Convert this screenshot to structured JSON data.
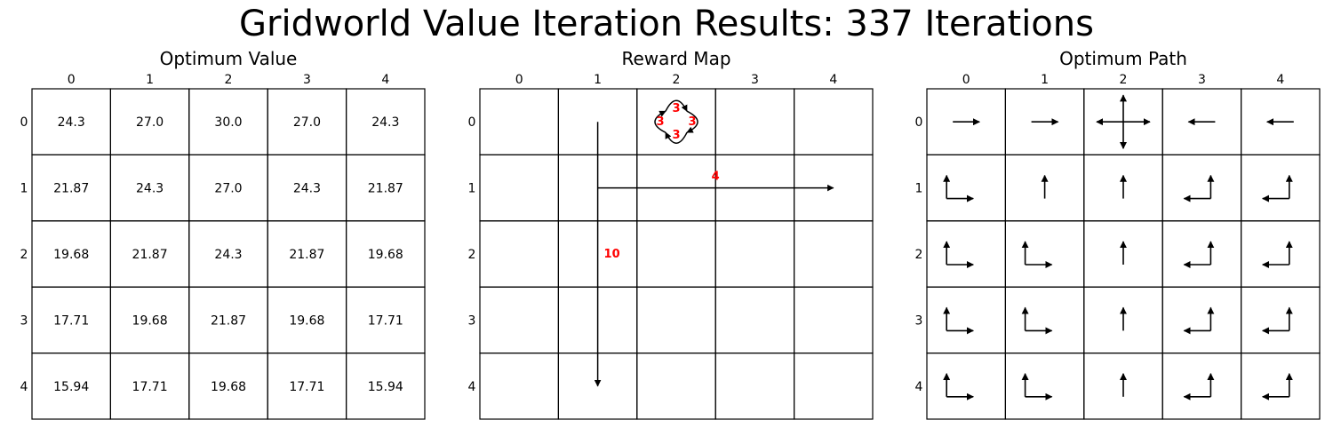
{
  "title": "Gridworld Value Iteration Results: 337 Iterations",
  "chart_data": [
    {
      "type": "table",
      "title": "Optimum Value",
      "col_labels": [
        "0",
        "1",
        "2",
        "3",
        "4"
      ],
      "row_labels": [
        "0",
        "1",
        "2",
        "3",
        "4"
      ],
      "values": [
        [
          "24.3",
          "27.0",
          "30.0",
          "27.0",
          "24.3"
        ],
        [
          "21.87",
          "24.3",
          "27.0",
          "24.3",
          "21.87"
        ],
        [
          "19.68",
          "21.87",
          "24.3",
          "21.87",
          "19.68"
        ],
        [
          "17.71",
          "19.68",
          "21.87",
          "19.68",
          "17.71"
        ],
        [
          "15.94",
          "17.71",
          "19.68",
          "17.71",
          "15.94"
        ]
      ]
    },
    {
      "type": "table",
      "title": "Reward Map",
      "col_labels": [
        "0",
        "1",
        "2",
        "3",
        "4"
      ],
      "row_labels": [
        "0",
        "1",
        "2",
        "3",
        "4"
      ],
      "transitions": [
        {
          "from": [
            0,
            1
          ],
          "to": [
            4,
            1
          ],
          "reward": "10"
        },
        {
          "from": [
            1,
            1
          ],
          "to": [
            1,
            4
          ],
          "reward": "4"
        },
        {
          "from": [
            0,
            2
          ],
          "to": [
            0,
            2
          ],
          "action": "up",
          "reward": "3"
        },
        {
          "from": [
            0,
            2
          ],
          "to": [
            0,
            2
          ],
          "action": "down",
          "reward": "3"
        },
        {
          "from": [
            0,
            2
          ],
          "to": [
            0,
            2
          ],
          "action": "left",
          "reward": "3"
        },
        {
          "from": [
            0,
            2
          ],
          "to": [
            0,
            2
          ],
          "action": "right",
          "reward": "3"
        }
      ],
      "label_color": "#ff0000"
    },
    {
      "type": "table",
      "title": "Optimum Path",
      "col_labels": [
        "0",
        "1",
        "2",
        "3",
        "4"
      ],
      "row_labels": [
        "0",
        "1",
        "2",
        "3",
        "4"
      ],
      "actions": [
        [
          [
            "right"
          ],
          [
            "right"
          ],
          [
            "up",
            "down",
            "left",
            "right"
          ],
          [
            "left"
          ],
          [
            "left"
          ]
        ],
        [
          [
            "up",
            "right"
          ],
          [
            "up"
          ],
          [
            "up"
          ],
          [
            "up",
            "left"
          ],
          [
            "up",
            "left"
          ]
        ],
        [
          [
            "up",
            "right"
          ],
          [
            "up",
            "right"
          ],
          [
            "up"
          ],
          [
            "up",
            "left"
          ],
          [
            "up",
            "left"
          ]
        ],
        [
          [
            "up",
            "right"
          ],
          [
            "up",
            "right"
          ],
          [
            "up"
          ],
          [
            "up",
            "left"
          ],
          [
            "up",
            "left"
          ]
        ],
        [
          [
            "up",
            "right"
          ],
          [
            "up",
            "right"
          ],
          [
            "up"
          ],
          [
            "up",
            "left"
          ],
          [
            "up",
            "left"
          ]
        ]
      ]
    }
  ]
}
